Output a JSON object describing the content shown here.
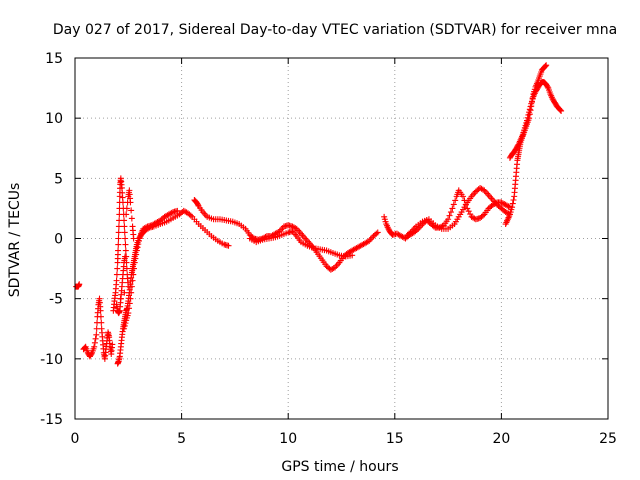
{
  "chart_data": {
    "type": "scatter",
    "title": "Day 027 of 2017, Sidereal Day-to-day VTEC variation (SDTVAR) for receiver mna",
    "xlabel": "GPS time / hours",
    "ylabel": "SDTVAR / TECUs",
    "xlim": [
      0,
      25
    ],
    "ylim": [
      -15,
      15
    ],
    "xticks": [
      "0",
      "5",
      "10",
      "15",
      "20",
      "25"
    ],
    "yticks": [
      "-15",
      "-10",
      "-5",
      "0",
      "5",
      "10",
      "15"
    ],
    "grid": true,
    "legend": "none",
    "marker": "+",
    "color": "#ff0000",
    "series": [
      {
        "points": [
          [
            0.05,
            -4.0
          ],
          [
            0.15,
            -4.0
          ],
          [
            0.2,
            -3.8
          ],
          [
            0.4,
            -9.2
          ],
          [
            0.5,
            -9.0
          ],
          [
            0.6,
            -9.5
          ],
          [
            0.7,
            -9.8
          ],
          [
            0.8,
            -9.5
          ],
          [
            0.9,
            -9.0
          ],
          [
            1.0,
            -8.0
          ],
          [
            1.05,
            -6.5
          ],
          [
            1.1,
            -5.5
          ],
          [
            1.15,
            -5.0
          ],
          [
            1.2,
            -6.0
          ],
          [
            1.25,
            -7.5
          ],
          [
            1.3,
            -8.5
          ],
          [
            1.35,
            -9.5
          ],
          [
            1.4,
            -10.0
          ],
          [
            1.45,
            -9.2
          ],
          [
            1.5,
            -8.5
          ],
          [
            1.55,
            -7.8
          ],
          [
            1.6,
            -8.2
          ],
          [
            1.65,
            -9.0
          ],
          [
            1.7,
            -9.6
          ],
          [
            1.75,
            -8.8
          ],
          [
            1.8,
            -6.0
          ],
          [
            1.85,
            -5.2
          ],
          [
            1.9,
            -4.5
          ],
          [
            1.95,
            -3.5
          ],
          [
            2.0,
            -2.0
          ],
          [
            2.02,
            -1.0
          ],
          [
            2.05,
            0.5
          ],
          [
            2.08,
            2.0
          ],
          [
            2.1,
            3.5
          ],
          [
            2.12,
            4.5
          ],
          [
            2.15,
            5.0
          ],
          [
            2.2,
            4.2
          ],
          [
            2.25,
            3.0
          ],
          [
            2.3,
            1.5
          ],
          [
            2.35,
            0.0
          ],
          [
            2.4,
            -1.5
          ],
          [
            2.45,
            -3.0
          ],
          [
            2.5,
            -4.0
          ],
          [
            1.95,
            -5.5
          ],
          [
            2.0,
            -6.0
          ],
          [
            2.05,
            -6.2
          ],
          [
            2.1,
            -6.0
          ],
          [
            2.15,
            -5.0
          ],
          [
            2.2,
            -4.0
          ],
          [
            2.25,
            -3.0
          ],
          [
            2.3,
            -2.0
          ],
          [
            2.35,
            -1.5
          ],
          [
            2.0,
            -10.4
          ],
          [
            2.05,
            -10.2
          ],
          [
            2.1,
            -9.8
          ],
          [
            2.15,
            -9.0
          ],
          [
            2.2,
            -8.2
          ],
          [
            2.25,
            -7.5
          ],
          [
            2.3,
            -7.0
          ],
          [
            2.35,
            -6.5
          ],
          [
            2.4,
            -6.0
          ],
          [
            2.45,
            -5.8
          ],
          [
            2.5,
            -5.2
          ],
          [
            2.55,
            -4.5
          ],
          [
            2.6,
            -3.8
          ],
          [
            2.65,
            -3.0
          ],
          [
            2.7,
            -2.5
          ],
          [
            2.75,
            -2.0
          ],
          [
            2.8,
            -1.5
          ],
          [
            2.85,
            -1.0
          ],
          [
            2.9,
            -0.5
          ],
          [
            3.0,
            0.0
          ],
          [
            3.1,
            0.3
          ],
          [
            3.2,
            0.5
          ],
          [
            3.3,
            0.7
          ],
          [
            3.5,
            0.9
          ],
          [
            3.7,
            1.0
          ],
          [
            4.0,
            1.2
          ],
          [
            4.3,
            1.4
          ],
          [
            4.6,
            1.7
          ],
          [
            4.9,
            2.0
          ],
          [
            5.1,
            2.3
          ],
          [
            5.3,
            2.1
          ],
          [
            5.5,
            1.8
          ],
          [
            5.8,
            1.2
          ],
          [
            6.1,
            0.7
          ],
          [
            6.4,
            0.2
          ],
          [
            6.7,
            -0.2
          ],
          [
            7.0,
            -0.5
          ],
          [
            7.2,
            -0.6
          ],
          [
            2.3,
            -7.5
          ],
          [
            2.4,
            -6.8
          ],
          [
            2.5,
            -6.2
          ],
          [
            2.6,
            -5.0
          ],
          [
            2.7,
            -3.5
          ],
          [
            2.8,
            -2.0
          ],
          [
            2.9,
            -1.0
          ],
          [
            3.0,
            -0.2
          ],
          [
            3.1,
            0.4
          ],
          [
            3.2,
            0.8
          ],
          [
            3.4,
            1.0
          ],
          [
            3.6,
            1.1
          ],
          [
            3.8,
            1.3
          ],
          [
            4.0,
            1.5
          ],
          [
            4.2,
            1.8
          ],
          [
            4.4,
            2.0
          ],
          [
            4.6,
            2.2
          ],
          [
            4.8,
            2.3
          ],
          [
            2.4,
            2.0
          ],
          [
            2.5,
            3.5
          ],
          [
            2.55,
            4.0
          ],
          [
            2.6,
            3.0
          ],
          [
            2.7,
            1.0
          ],
          [
            2.75,
            0.0
          ],
          [
            5.6,
            3.2
          ],
          [
            5.7,
            3.0
          ],
          [
            5.8,
            2.7
          ],
          [
            6.0,
            2.2
          ],
          [
            6.2,
            1.8
          ],
          [
            6.5,
            1.6
          ],
          [
            6.8,
            1.6
          ],
          [
            7.1,
            1.5
          ],
          [
            7.4,
            1.4
          ],
          [
            7.7,
            1.2
          ],
          [
            8.0,
            0.8
          ],
          [
            8.2,
            0.3
          ],
          [
            8.4,
            0.0
          ],
          [
            8.6,
            -0.1
          ],
          [
            8.8,
            0.0
          ],
          [
            9.0,
            0.2
          ],
          [
            9.2,
            0.2
          ],
          [
            9.4,
            0.4
          ],
          [
            9.6,
            0.6
          ],
          [
            9.8,
            1.0
          ],
          [
            10.0,
            1.1
          ],
          [
            10.2,
            1.0
          ],
          [
            10.4,
            0.8
          ],
          [
            10.6,
            0.4
          ],
          [
            10.8,
            0.0
          ],
          [
            11.0,
            -0.4
          ],
          [
            11.2,
            -0.8
          ],
          [
            11.4,
            -1.3
          ],
          [
            11.6,
            -1.8
          ],
          [
            11.8,
            -2.3
          ],
          [
            12.0,
            -2.6
          ],
          [
            12.2,
            -2.4
          ],
          [
            12.4,
            -2.0
          ],
          [
            12.6,
            -1.5
          ],
          [
            12.8,
            -1.2
          ],
          [
            13.0,
            -1.0
          ],
          [
            13.2,
            -0.8
          ],
          [
            13.4,
            -0.6
          ],
          [
            13.6,
            -0.4
          ],
          [
            13.8,
            -0.2
          ],
          [
            14.0,
            0.2
          ],
          [
            14.2,
            0.5
          ],
          [
            8.2,
            0.0
          ],
          [
            8.5,
            -0.3
          ],
          [
            8.8,
            -0.1
          ],
          [
            9.1,
            0.0
          ],
          [
            9.4,
            0.1
          ],
          [
            9.7,
            0.3
          ],
          [
            10.0,
            0.5
          ],
          [
            10.2,
            0.6
          ],
          [
            10.4,
            0.2
          ],
          [
            10.6,
            -0.3
          ],
          [
            10.9,
            -0.6
          ],
          [
            11.2,
            -0.8
          ],
          [
            11.5,
            -0.9
          ],
          [
            11.8,
            -1.0
          ],
          [
            12.1,
            -1.2
          ],
          [
            12.4,
            -1.4
          ],
          [
            12.7,
            -1.5
          ],
          [
            13.0,
            -1.4
          ],
          [
            14.5,
            1.8
          ],
          [
            14.6,
            1.2
          ],
          [
            14.7,
            0.8
          ],
          [
            14.8,
            0.5
          ],
          [
            14.9,
            0.3
          ],
          [
            15.1,
            0.4
          ],
          [
            15.3,
            0.2
          ],
          [
            15.5,
            0.0
          ],
          [
            15.7,
            0.3
          ],
          [
            15.9,
            0.5
          ],
          [
            16.1,
            0.8
          ],
          [
            16.3,
            1.2
          ],
          [
            16.5,
            1.5
          ],
          [
            16.7,
            1.2
          ],
          [
            16.9,
            0.9
          ],
          [
            17.1,
            0.9
          ],
          [
            17.3,
            1.1
          ],
          [
            17.5,
            1.6
          ],
          [
            17.7,
            2.5
          ],
          [
            17.9,
            3.5
          ],
          [
            18.0,
            4.0
          ],
          [
            18.2,
            3.5
          ],
          [
            18.4,
            2.5
          ],
          [
            18.6,
            1.8
          ],
          [
            18.8,
            1.6
          ],
          [
            19.0,
            1.7
          ],
          [
            19.2,
            2.0
          ],
          [
            19.4,
            2.5
          ],
          [
            19.6,
            2.8
          ],
          [
            19.8,
            3.0
          ],
          [
            20.0,
            3.0
          ],
          [
            20.2,
            2.8
          ],
          [
            20.4,
            2.6
          ],
          [
            15.6,
            0.3
          ],
          [
            15.8,
            0.6
          ],
          [
            16.0,
            1.0
          ],
          [
            16.3,
            1.4
          ],
          [
            16.6,
            1.6
          ],
          [
            16.9,
            1.1
          ],
          [
            17.2,
            0.8
          ],
          [
            17.5,
            0.8
          ],
          [
            17.8,
            1.2
          ],
          [
            18.0,
            1.8
          ],
          [
            18.2,
            2.4
          ],
          [
            18.4,
            3.0
          ],
          [
            18.6,
            3.5
          ],
          [
            18.8,
            3.9
          ],
          [
            19.0,
            4.2
          ],
          [
            19.2,
            4.0
          ],
          [
            19.4,
            3.6
          ],
          [
            19.6,
            3.2
          ],
          [
            19.8,
            2.8
          ],
          [
            20.0,
            2.5
          ],
          [
            20.2,
            2.2
          ],
          [
            20.4,
            2.0
          ],
          [
            20.2,
            1.2
          ],
          [
            20.3,
            1.6
          ],
          [
            20.4,
            2.0
          ],
          [
            20.5,
            2.6
          ],
          [
            20.6,
            3.5
          ],
          [
            20.65,
            4.5
          ],
          [
            20.7,
            5.5
          ],
          [
            20.75,
            6.5
          ],
          [
            20.8,
            7.0
          ],
          [
            20.85,
            7.5
          ],
          [
            20.9,
            8.0
          ],
          [
            21.0,
            8.5
          ],
          [
            21.1,
            9.0
          ],
          [
            21.2,
            9.5
          ],
          [
            21.3,
            10.0
          ],
          [
            21.4,
            11.0
          ],
          [
            21.5,
            12.0
          ],
          [
            21.6,
            12.6
          ],
          [
            21.7,
            13.0
          ],
          [
            21.8,
            13.5
          ],
          [
            21.9,
            14.0
          ],
          [
            22.0,
            14.2
          ],
          [
            22.1,
            14.4
          ],
          [
            20.4,
            6.7
          ],
          [
            20.5,
            7.0
          ],
          [
            20.6,
            7.2
          ],
          [
            20.7,
            7.5
          ],
          [
            20.8,
            7.8
          ],
          [
            20.9,
            8.2
          ],
          [
            21.0,
            8.6
          ],
          [
            21.1,
            9.2
          ],
          [
            21.2,
            9.8
          ],
          [
            21.3,
            10.5
          ],
          [
            21.4,
            11.2
          ],
          [
            21.5,
            11.8
          ],
          [
            21.6,
            12.2
          ],
          [
            21.7,
            12.5
          ],
          [
            21.8,
            12.8
          ],
          [
            21.9,
            13.0
          ],
          [
            22.0,
            13.0
          ],
          [
            22.1,
            12.8
          ],
          [
            22.2,
            12.5
          ],
          [
            22.3,
            12.0
          ],
          [
            22.4,
            11.6
          ],
          [
            22.5,
            11.3
          ],
          [
            22.6,
            11.0
          ],
          [
            22.7,
            10.8
          ],
          [
            22.8,
            10.6
          ]
        ]
      }
    ]
  }
}
